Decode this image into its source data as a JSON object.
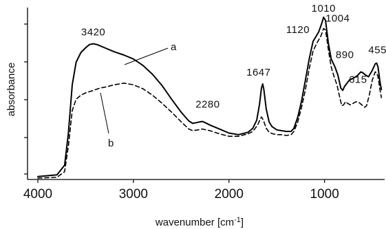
{
  "chart_data": {
    "type": "line",
    "title": "",
    "xlabel": "wavenumber [cm-1]",
    "ylabel": "absorbance",
    "xlim": [
      4000,
      400
    ],
    "x_reversed": true,
    "ylim": [
      0,
      1
    ],
    "y_tick_labels_shown": false,
    "grid": false,
    "x_ticks": [
      4000,
      3000,
      2000,
      1000
    ],
    "x_tick_labels": [
      "4000",
      "3000",
      "2000",
      "1000"
    ],
    "series": [
      {
        "name": "a",
        "style": "solid",
        "points": [
          [
            4000,
            0.01
          ],
          [
            3800,
            0.02
          ],
          [
            3720,
            0.08
          ],
          [
            3680,
            0.28
          ],
          [
            3640,
            0.58
          ],
          [
            3600,
            0.72
          ],
          [
            3550,
            0.78
          ],
          [
            3500,
            0.81
          ],
          [
            3460,
            0.83
          ],
          [
            3420,
            0.835
          ],
          [
            3380,
            0.83
          ],
          [
            3300,
            0.81
          ],
          [
            3200,
            0.785
          ],
          [
            3100,
            0.765
          ],
          [
            3000,
            0.74
          ],
          [
            2900,
            0.7
          ],
          [
            2800,
            0.645
          ],
          [
            2700,
            0.575
          ],
          [
            2600,
            0.49
          ],
          [
            2500,
            0.41
          ],
          [
            2420,
            0.355
          ],
          [
            2380,
            0.34
          ],
          [
            2340,
            0.345
          ],
          [
            2300,
            0.35
          ],
          [
            2280,
            0.352
          ],
          [
            2250,
            0.345
          ],
          [
            2200,
            0.33
          ],
          [
            2100,
            0.305
          ],
          [
            2000,
            0.28
          ],
          [
            1900,
            0.27
          ],
          [
            1800,
            0.285
          ],
          [
            1750,
            0.31
          ],
          [
            1710,
            0.36
          ],
          [
            1680,
            0.46
          ],
          [
            1660,
            0.56
          ],
          [
            1647,
            0.585
          ],
          [
            1635,
            0.55
          ],
          [
            1610,
            0.43
          ],
          [
            1580,
            0.35
          ],
          [
            1550,
            0.32
          ],
          [
            1500,
            0.3
          ],
          [
            1450,
            0.295
          ],
          [
            1400,
            0.29
          ],
          [
            1350,
            0.29
          ],
          [
            1320,
            0.31
          ],
          [
            1280,
            0.38
          ],
          [
            1240,
            0.48
          ],
          [
            1200,
            0.61
          ],
          [
            1160,
            0.74
          ],
          [
            1120,
            0.85
          ],
          [
            1090,
            0.88
          ],
          [
            1060,
            0.91
          ],
          [
            1030,
            0.96
          ],
          [
            1010,
            1.0
          ],
          [
            990,
            0.98
          ],
          [
            960,
            0.84
          ],
          [
            930,
            0.74
          ],
          [
            890,
            0.69
          ],
          [
            860,
            0.64
          ],
          [
            830,
            0.56
          ],
          [
            810,
            0.545
          ],
          [
            790,
            0.57
          ],
          [
            740,
            0.61
          ],
          [
            700,
            0.62
          ],
          [
            660,
            0.635
          ],
          [
            620,
            0.66
          ],
          [
            600,
            0.655
          ],
          [
            570,
            0.64
          ],
          [
            540,
            0.63
          ],
          [
            500,
            0.67
          ],
          [
            470,
            0.71
          ],
          [
            455,
            0.715
          ],
          [
            440,
            0.69
          ],
          [
            420,
            0.6
          ],
          [
            405,
            0.55
          ]
        ]
      },
      {
        "name": "b",
        "style": "dashed",
        "points": [
          [
            4000,
            0.0
          ],
          [
            3800,
            0.005
          ],
          [
            3720,
            0.04
          ],
          [
            3680,
            0.2
          ],
          [
            3640,
            0.42
          ],
          [
            3600,
            0.49
          ],
          [
            3550,
            0.515
          ],
          [
            3500,
            0.53
          ],
          [
            3420,
            0.545
          ],
          [
            3350,
            0.56
          ],
          [
            3300,
            0.565
          ],
          [
            3200,
            0.58
          ],
          [
            3100,
            0.59
          ],
          [
            3000,
            0.58
          ],
          [
            2900,
            0.555
          ],
          [
            2800,
            0.515
          ],
          [
            2700,
            0.465
          ],
          [
            2600,
            0.41
          ],
          [
            2500,
            0.35
          ],
          [
            2420,
            0.305
          ],
          [
            2380,
            0.295
          ],
          [
            2320,
            0.3
          ],
          [
            2280,
            0.305
          ],
          [
            2200,
            0.295
          ],
          [
            2100,
            0.275
          ],
          [
            2000,
            0.26
          ],
          [
            1900,
            0.26
          ],
          [
            1800,
            0.275
          ],
          [
            1750,
            0.29
          ],
          [
            1700,
            0.33
          ],
          [
            1670,
            0.37
          ],
          [
            1660,
            0.38
          ],
          [
            1640,
            0.36
          ],
          [
            1610,
            0.31
          ],
          [
            1580,
            0.285
          ],
          [
            1540,
            0.275
          ],
          [
            1500,
            0.27
          ],
          [
            1450,
            0.27
          ],
          [
            1400,
            0.265
          ],
          [
            1350,
            0.27
          ],
          [
            1320,
            0.29
          ],
          [
            1280,
            0.35
          ],
          [
            1240,
            0.44
          ],
          [
            1200,
            0.55
          ],
          [
            1160,
            0.68
          ],
          [
            1120,
            0.79
          ],
          [
            1080,
            0.84
          ],
          [
            1040,
            0.88
          ],
          [
            1010,
            0.93
          ],
          [
            990,
            0.92
          ],
          [
            960,
            0.8
          ],
          [
            930,
            0.69
          ],
          [
            900,
            0.63
          ],
          [
            870,
            0.58
          ],
          [
            840,
            0.5
          ],
          [
            820,
            0.45
          ],
          [
            800,
            0.455
          ],
          [
            780,
            0.475
          ],
          [
            760,
            0.465
          ],
          [
            730,
            0.455
          ],
          [
            700,
            0.465
          ],
          [
            670,
            0.475
          ],
          [
            640,
            0.47
          ],
          [
            610,
            0.455
          ],
          [
            580,
            0.44
          ],
          [
            560,
            0.45
          ],
          [
            530,
            0.52
          ],
          [
            500,
            0.61
          ],
          [
            470,
            0.66
          ],
          [
            455,
            0.655
          ],
          [
            440,
            0.63
          ],
          [
            420,
            0.55
          ],
          [
            405,
            0.5
          ]
        ]
      }
    ],
    "peak_labels": [
      {
        "text": "3420",
        "x": 3420,
        "y": 0.835,
        "series": "a"
      },
      {
        "text": "2280",
        "x": 2280,
        "y": 0.352,
        "series": "a"
      },
      {
        "text": "1647",
        "x": 1647,
        "y": 0.585,
        "series": "a"
      },
      {
        "text": "1120",
        "x": 1120,
        "y": 0.85,
        "series": "a"
      },
      {
        "text": "1010",
        "x": 1010,
        "y": 1.0,
        "series": "a"
      },
      {
        "text": "1004",
        "x": 1004,
        "y": 0.93,
        "series": "b"
      },
      {
        "text": "890",
        "x": 890,
        "y": 0.69,
        "series": "a"
      },
      {
        "text": "615",
        "x": 615,
        "y": 0.66,
        "series": "a"
      },
      {
        "text": "455",
        "x": 455,
        "y": 0.715,
        "series": "a"
      }
    ],
    "series_labels": [
      {
        "text": "a",
        "series": "a"
      },
      {
        "text": "b",
        "series": "b"
      }
    ]
  }
}
